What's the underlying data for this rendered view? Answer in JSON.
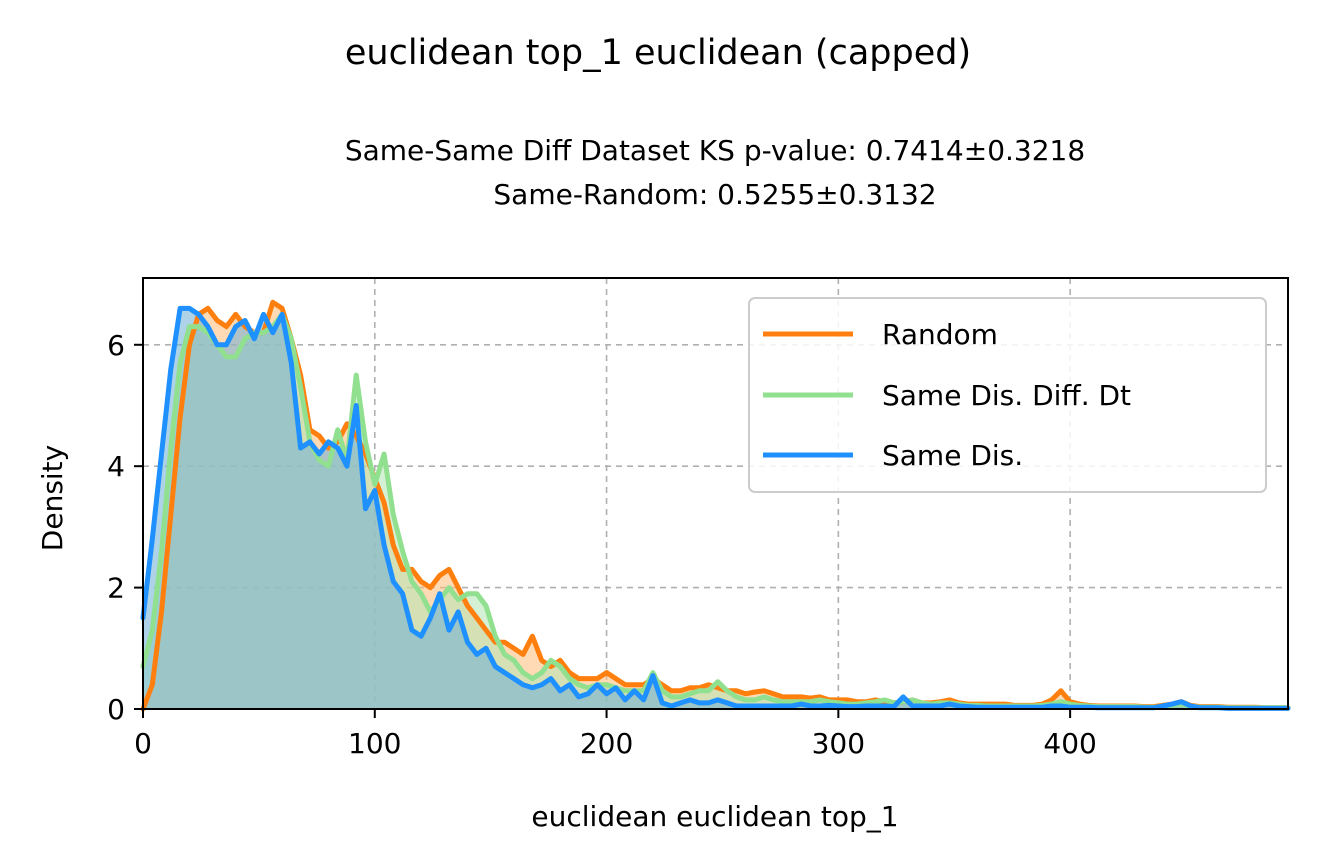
{
  "chart_data": {
    "type": "area",
    "title": "euclidean top_1 euclidean (capped)",
    "subtitle_lines": [
      "Same-Same Diff Dataset  KS p-value: 0.7414±0.3218",
      "Same-Random: 0.5255±0.3132"
    ],
    "xlabel": "euclidean euclidean top_1",
    "ylabel": "Density",
    "xlim": [
      0,
      494
    ],
    "ylim": [
      0,
      7.1
    ],
    "xticks": [
      0,
      100,
      200,
      300,
      400
    ],
    "yticks": [
      0,
      2,
      4,
      6
    ],
    "grid": true,
    "legend_position": "upper-right",
    "series": [
      {
        "name": "Random",
        "color": "#ff7f0e",
        "fill": "#ffbb78",
        "x": [
          0,
          4,
          8,
          12,
          16,
          20,
          24,
          28,
          32,
          36,
          40,
          44,
          48,
          52,
          56,
          60,
          64,
          68,
          72,
          76,
          80,
          84,
          88,
          92,
          96,
          100,
          104,
          108,
          112,
          116,
          120,
          124,
          128,
          132,
          136,
          140,
          144,
          148,
          152,
          156,
          160,
          164,
          168,
          172,
          176,
          180,
          184,
          188,
          192,
          196,
          200,
          204,
          208,
          212,
          216,
          220,
          224,
          228,
          232,
          236,
          240,
          244,
          248,
          252,
          256,
          260,
          264,
          268,
          272,
          276,
          280,
          284,
          288,
          292,
          296,
          300,
          304,
          308,
          312,
          316,
          320,
          324,
          328,
          332,
          336,
          340,
          344,
          348,
          352,
          356,
          360,
          364,
          368,
          372,
          376,
          380,
          384,
          388,
          392,
          396,
          400,
          404,
          408,
          412,
          416,
          420,
          424,
          428,
          432,
          436,
          440,
          444,
          448,
          452,
          456,
          460,
          464,
          468,
          472,
          476,
          480,
          484,
          488,
          494
        ],
        "y": [
          0,
          0.4,
          1.6,
          3.2,
          4.8,
          6.0,
          6.5,
          6.6,
          6.4,
          6.3,
          6.5,
          6.3,
          6.2,
          6.2,
          6.7,
          6.6,
          6.1,
          5.5,
          4.6,
          4.5,
          4.3,
          4.4,
          4.7,
          4.5,
          4.2,
          3.8,
          3.4,
          2.7,
          2.3,
          2.3,
          2.1,
          2.0,
          2.2,
          2.3,
          2.0,
          1.7,
          1.5,
          1.3,
          1.1,
          1.1,
          1.0,
          0.9,
          1.2,
          0.8,
          0.7,
          0.8,
          0.6,
          0.5,
          0.5,
          0.5,
          0.6,
          0.5,
          0.4,
          0.4,
          0.4,
          0.5,
          0.4,
          0.3,
          0.3,
          0.35,
          0.35,
          0.4,
          0.35,
          0.3,
          0.3,
          0.25,
          0.28,
          0.3,
          0.25,
          0.2,
          0.2,
          0.2,
          0.18,
          0.2,
          0.15,
          0.15,
          0.15,
          0.12,
          0.12,
          0.15,
          0.12,
          0.1,
          0.12,
          0.15,
          0.1,
          0.1,
          0.12,
          0.15,
          0.1,
          0.08,
          0.08,
          0.08,
          0.08,
          0.08,
          0.06,
          0.06,
          0.06,
          0.08,
          0.15,
          0.3,
          0.12,
          0.08,
          0.06,
          0.05,
          0.05,
          0.05,
          0.05,
          0.05,
          0.04,
          0.04,
          0.06,
          0.08,
          0.12,
          0.06,
          0.04,
          0.04,
          0.04,
          0.03,
          0.03,
          0.03,
          0.03,
          0.02,
          0.02,
          0.02
        ]
      },
      {
        "name": "Same Dis. Diff. Dt",
        "color": "#90e090",
        "fill": "#b2e6b2",
        "x": [
          0,
          4,
          8,
          12,
          16,
          20,
          24,
          28,
          32,
          36,
          40,
          44,
          48,
          52,
          56,
          60,
          64,
          68,
          72,
          76,
          80,
          84,
          88,
          92,
          96,
          100,
          104,
          108,
          112,
          116,
          120,
          124,
          128,
          132,
          136,
          140,
          144,
          148,
          152,
          156,
          160,
          164,
          168,
          172,
          176,
          180,
          184,
          188,
          192,
          196,
          200,
          204,
          208,
          212,
          216,
          220,
          224,
          228,
          232,
          236,
          240,
          244,
          248,
          252,
          256,
          260,
          264,
          268,
          272,
          276,
          280,
          284,
          288,
          292,
          296,
          300,
          304,
          308,
          312,
          316,
          320,
          324,
          328,
          332,
          336,
          340,
          344,
          348,
          352,
          356,
          360,
          364,
          368,
          372,
          376,
          380,
          384,
          388,
          392,
          396,
          400,
          404,
          408,
          412,
          416,
          420,
          424,
          428,
          432,
          436,
          440,
          444,
          448,
          452,
          456,
          460,
          464,
          468,
          472,
          476,
          480,
          484,
          488,
          494
        ],
        "y": [
          0.7,
          1.3,
          2.6,
          4.3,
          5.7,
          6.3,
          6.3,
          6.2,
          6.0,
          5.8,
          5.8,
          6.1,
          6.2,
          6.2,
          6.3,
          6.5,
          6.1,
          5.3,
          4.4,
          4.1,
          4.0,
          4.6,
          4.1,
          5.5,
          4.4,
          3.7,
          4.2,
          3.2,
          2.6,
          2.1,
          1.9,
          1.6,
          1.8,
          2.0,
          1.8,
          1.9,
          1.9,
          1.7,
          1.2,
          0.9,
          0.8,
          0.6,
          0.5,
          0.6,
          0.8,
          0.7,
          0.5,
          0.4,
          0.35,
          0.4,
          0.4,
          0.35,
          0.3,
          0.3,
          0.3,
          0.6,
          0.3,
          0.2,
          0.2,
          0.25,
          0.3,
          0.3,
          0.45,
          0.3,
          0.2,
          0.15,
          0.15,
          0.2,
          0.15,
          0.12,
          0.12,
          0.12,
          0.12,
          0.15,
          0.12,
          0.1,
          0.08,
          0.08,
          0.1,
          0.12,
          0.15,
          0.1,
          0.12,
          0.15,
          0.1,
          0.08,
          0.1,
          0.1,
          0.08,
          0.06,
          0.06,
          0.05,
          0.05,
          0.05,
          0.05,
          0.05,
          0.05,
          0.06,
          0.08,
          0.12,
          0.08,
          0.06,
          0.05,
          0.04,
          0.04,
          0.04,
          0.04,
          0.04,
          0.03,
          0.03,
          0.04,
          0.06,
          0.08,
          0.05,
          0.03,
          0.03,
          0.03,
          0.02,
          0.02,
          0.02,
          0.02,
          0.02,
          0.02,
          0.02
        ]
      },
      {
        "name": "Same Dis.",
        "color": "#1e90ff",
        "fill": "#6baed6",
        "x": [
          0,
          4,
          8,
          12,
          16,
          20,
          24,
          28,
          32,
          36,
          40,
          44,
          48,
          52,
          56,
          60,
          64,
          68,
          72,
          76,
          80,
          84,
          88,
          92,
          96,
          100,
          104,
          108,
          112,
          116,
          120,
          124,
          128,
          132,
          136,
          140,
          144,
          148,
          152,
          156,
          160,
          164,
          168,
          172,
          176,
          180,
          184,
          188,
          192,
          196,
          200,
          204,
          208,
          212,
          216,
          220,
          224,
          228,
          232,
          236,
          240,
          244,
          248,
          252,
          256,
          260,
          264,
          268,
          272,
          276,
          280,
          284,
          288,
          292,
          296,
          300,
          304,
          308,
          312,
          316,
          320,
          324,
          328,
          332,
          336,
          340,
          344,
          348,
          352,
          356,
          360,
          364,
          368,
          372,
          376,
          380,
          384,
          388,
          392,
          396,
          400,
          404,
          408,
          412,
          416,
          420,
          424,
          428,
          432,
          436,
          440,
          444,
          448,
          452,
          456,
          460,
          464,
          468,
          472,
          476,
          480,
          484,
          488,
          494
        ],
        "y": [
          1.5,
          2.8,
          4.2,
          5.6,
          6.6,
          6.6,
          6.5,
          6.3,
          6.0,
          6.0,
          6.3,
          6.4,
          6.1,
          6.5,
          6.2,
          6.5,
          5.7,
          4.3,
          4.4,
          4.2,
          4.4,
          4.3,
          4.0,
          5.0,
          3.3,
          3.6,
          2.7,
          2.1,
          1.9,
          1.3,
          1.2,
          1.5,
          1.9,
          1.3,
          1.6,
          1.1,
          0.9,
          1.0,
          0.7,
          0.6,
          0.5,
          0.4,
          0.35,
          0.4,
          0.5,
          0.3,
          0.4,
          0.2,
          0.25,
          0.4,
          0.25,
          0.35,
          0.15,
          0.3,
          0.15,
          0.55,
          0.1,
          0.05,
          0.1,
          0.15,
          0.1,
          0.1,
          0.15,
          0.1,
          0.05,
          0.05,
          0.05,
          0.05,
          0.05,
          0.05,
          0.05,
          0.08,
          0.05,
          0.05,
          0.06,
          0.05,
          0.04,
          0.04,
          0.05,
          0.05,
          0.05,
          0.04,
          0.2,
          0.05,
          0.05,
          0.05,
          0.05,
          0.08,
          0.05,
          0.04,
          0.03,
          0.03,
          0.03,
          0.03,
          0.03,
          0.03,
          0.03,
          0.03,
          0.05,
          0.05,
          0.03,
          0.03,
          0.03,
          0.02,
          0.02,
          0.02,
          0.02,
          0.02,
          0.02,
          0.02,
          0.05,
          0.08,
          0.12,
          0.05,
          0.02,
          0.02,
          0.02,
          0.01,
          0.01,
          0.01,
          0.01,
          0.01,
          0.01,
          0.01
        ]
      }
    ]
  }
}
